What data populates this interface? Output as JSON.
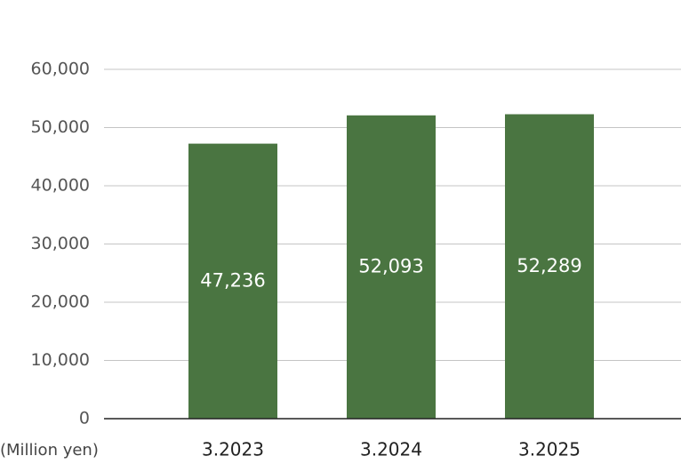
{
  "chart_data": {
    "type": "bar",
    "unit_label": "(Million yen)",
    "categories": [
      "3.2023",
      "3.2024",
      "3.2025"
    ],
    "values": [
      47236,
      52093,
      52289
    ],
    "value_labels": [
      "47,236",
      "52,093",
      "52,289"
    ],
    "color": "#4a7541",
    "ylim": [
      0,
      60000
    ],
    "yticks": [
      0,
      {
        "value": 10000,
        "label": "10,000"
      },
      {
        "value": 20000,
        "label": "20,000"
      },
      {
        "value": 30000,
        "label": "30,000"
      },
      {
        "value": 40000,
        "label": "40,000"
      },
      {
        "value": 50000,
        "label": "50,000"
      },
      {
        "value": 60000,
        "label": "60,000"
      }
    ],
    "grid": true
  }
}
